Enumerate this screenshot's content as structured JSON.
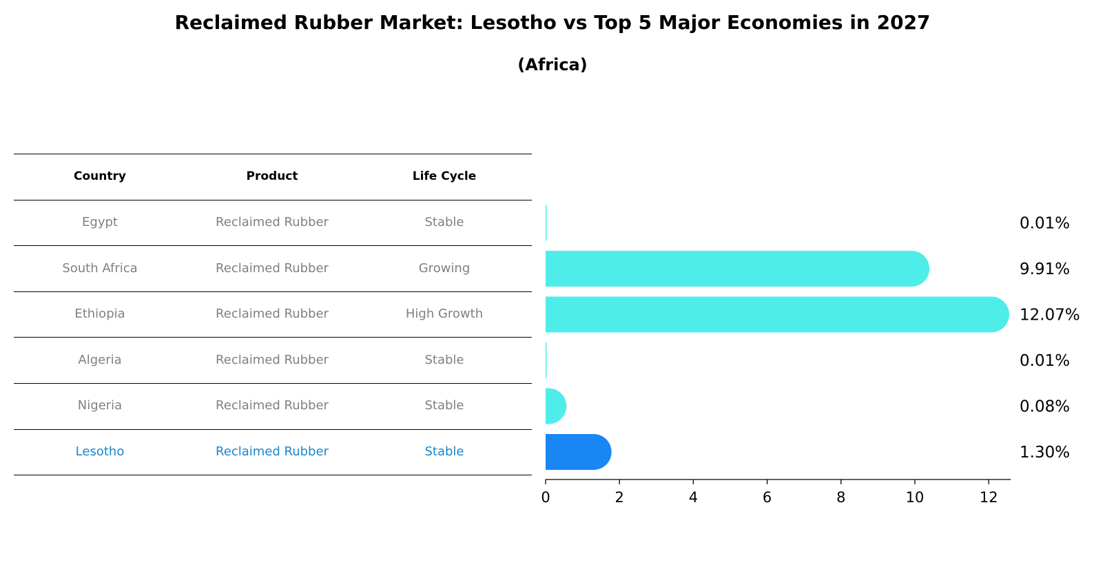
{
  "title": "Reclaimed Rubber Market: Lesotho vs Top 5 Major Economies in 2027",
  "subtitle": "(Africa)",
  "table": {
    "headers": [
      "Country",
      "Product",
      "Life Cycle"
    ],
    "rows": [
      {
        "country": "Egypt",
        "product": "Reclaimed Rubber",
        "life_cycle": "Stable"
      },
      {
        "country": "South Africa",
        "product": "Reclaimed Rubber",
        "life_cycle": "Growing"
      },
      {
        "country": "Ethiopia",
        "product": "Reclaimed Rubber",
        "life_cycle": "High Growth"
      },
      {
        "country": "Algeria",
        "product": "Reclaimed Rubber",
        "life_cycle": "Stable"
      },
      {
        "country": "Nigeria",
        "product": "Reclaimed Rubber",
        "life_cycle": "Stable"
      },
      {
        "country": "Lesotho",
        "product": "Reclaimed Rubber",
        "life_cycle": "Stable"
      }
    ]
  },
  "colors": {
    "bar": "#4EEDE9",
    "highlight_bar": "#1A86F4",
    "highlight_text": "#1A86D0",
    "muted_text": "#808080"
  },
  "chart_data": {
    "type": "bar",
    "orientation": "horizontal",
    "categories": [
      "Egypt",
      "South Africa",
      "Ethiopia",
      "Algeria",
      "Nigeria",
      "Lesotho"
    ],
    "values": [
      0.01,
      9.91,
      12.07,
      0.01,
      0.08,
      1.3
    ],
    "value_labels": [
      "0.01%",
      "9.91%",
      "12.07%",
      "0.01%",
      "0.08%",
      "1.30%"
    ],
    "highlight": "Lesotho",
    "xlim": [
      0,
      12.6
    ],
    "xticks": [
      0,
      2,
      4,
      6,
      8,
      10,
      12
    ],
    "xtick_labels": [
      "0",
      "2",
      "4",
      "6",
      "8",
      "10",
      "12"
    ],
    "xlabel": "",
    "ylabel": "",
    "grid": false
  }
}
